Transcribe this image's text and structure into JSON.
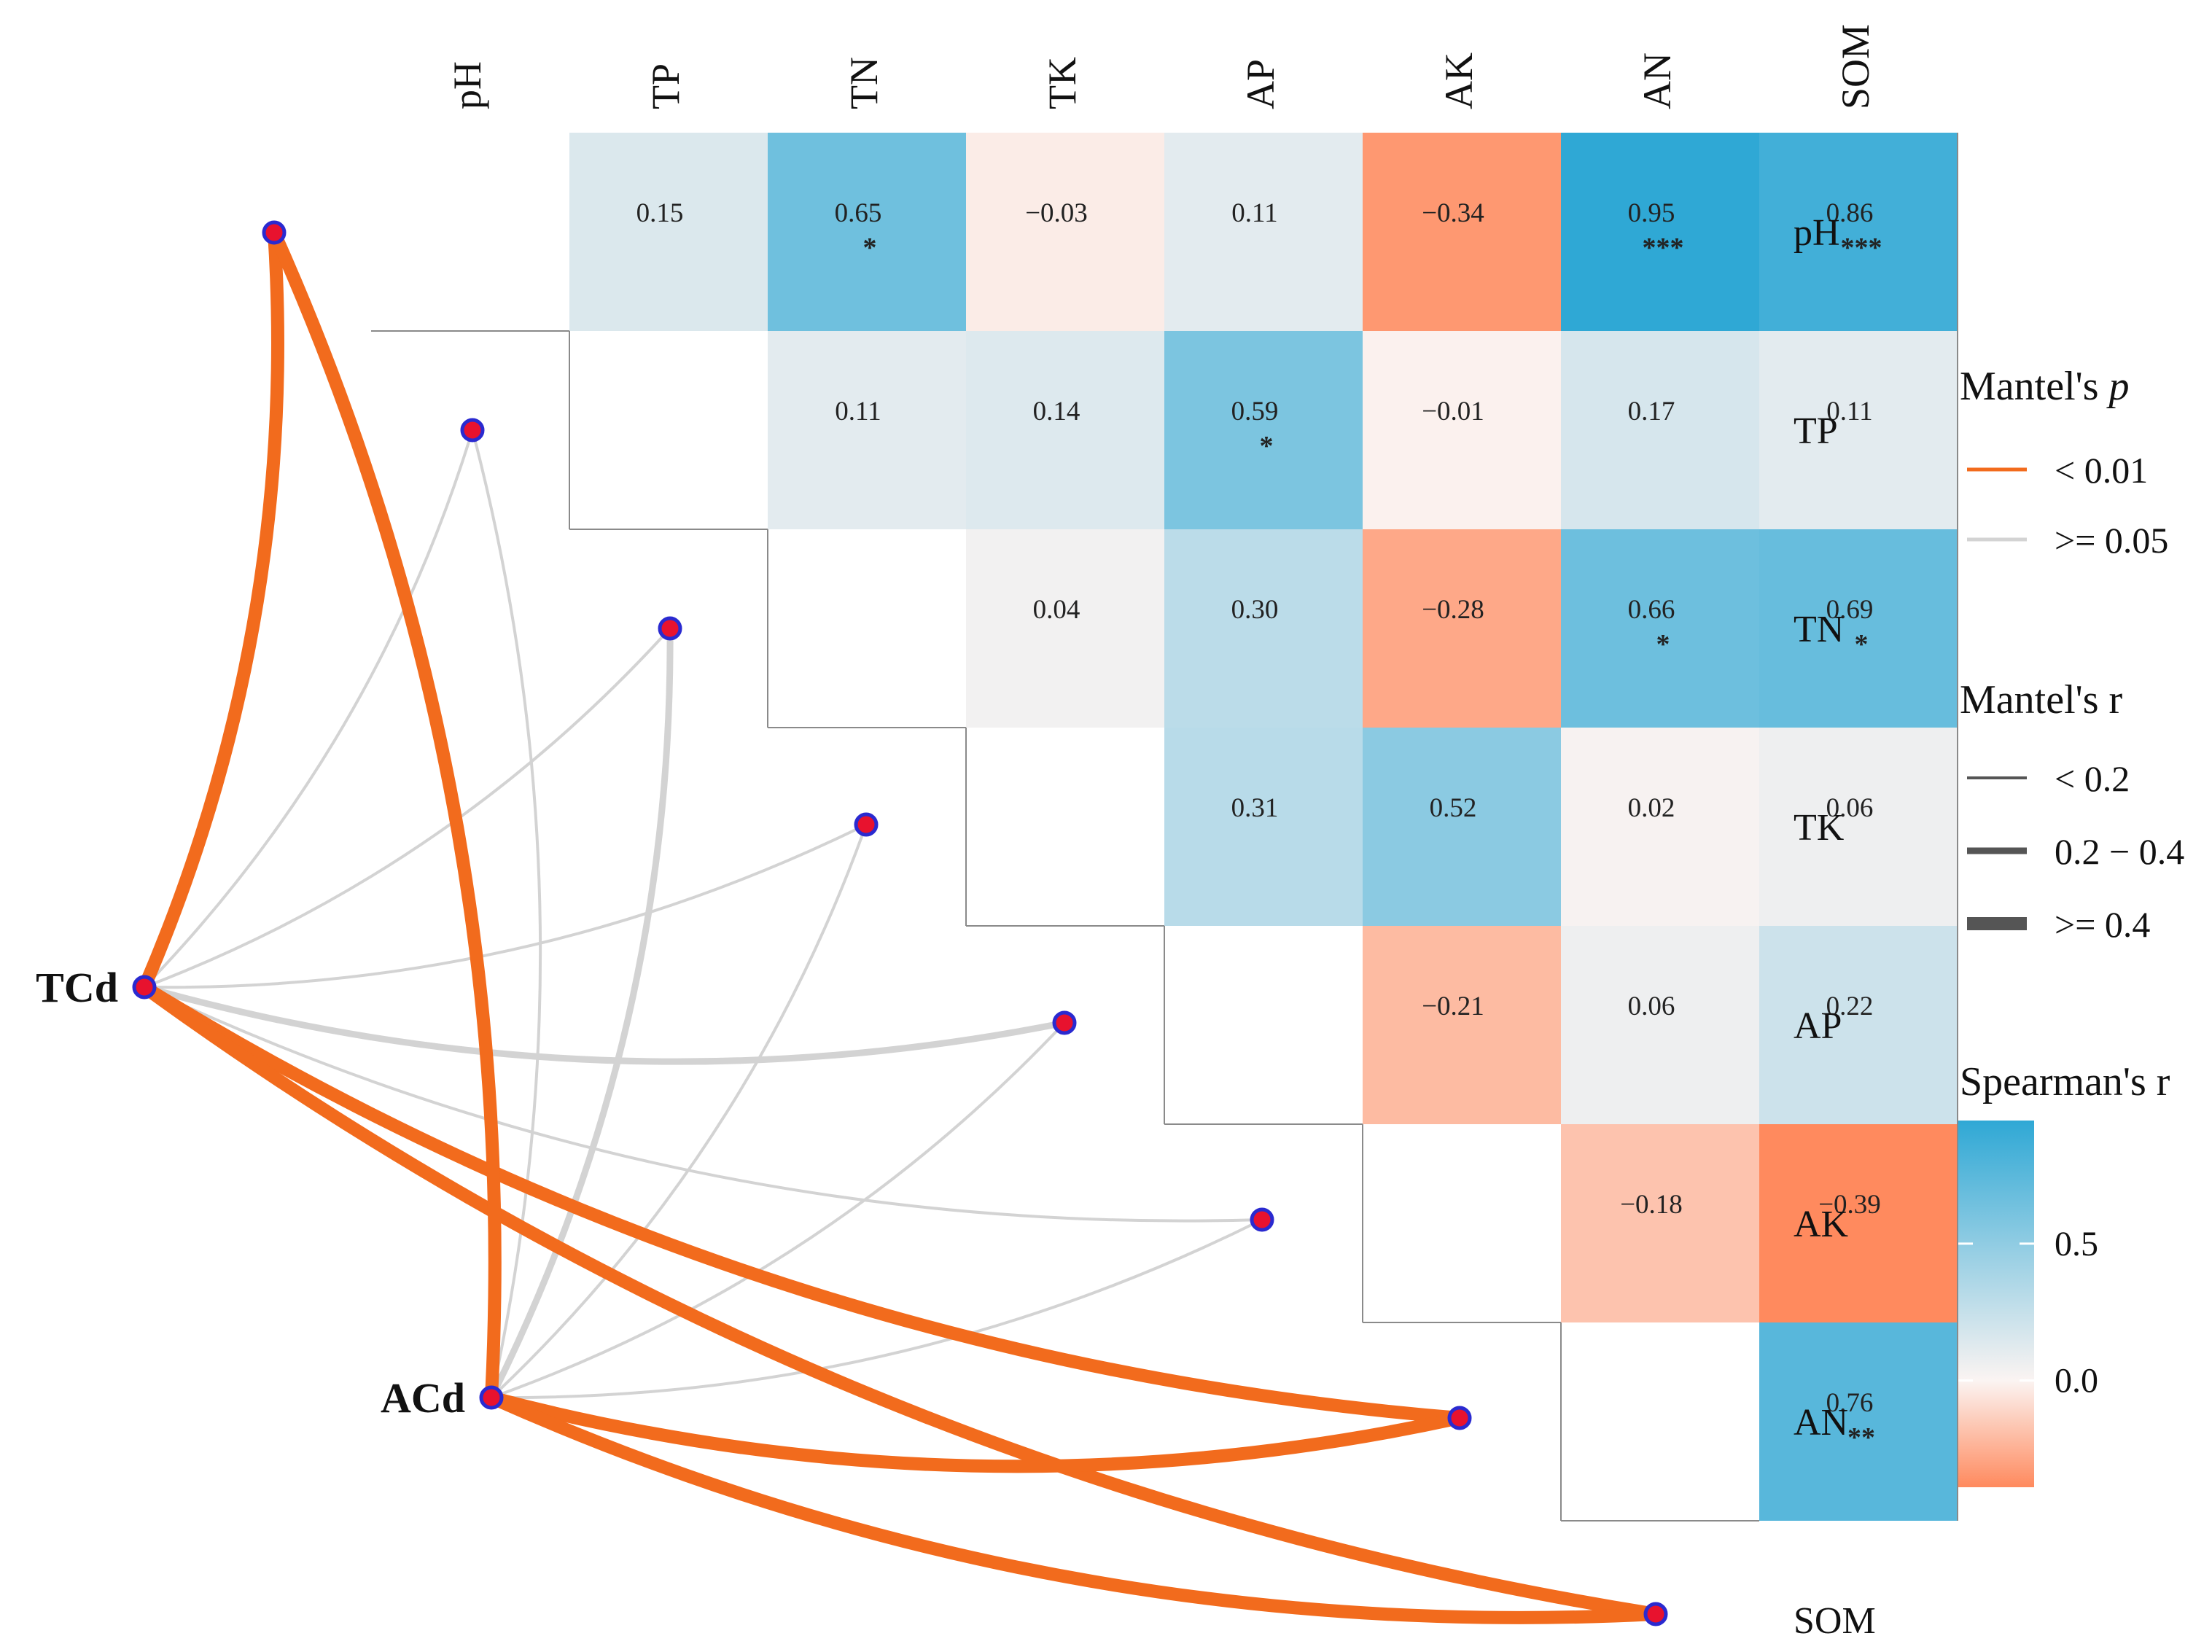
{
  "chart_data": {
    "type": "heatmap",
    "variables": [
      "pH",
      "TP",
      "TN",
      "TK",
      "AP",
      "AK",
      "AN",
      "SOM"
    ],
    "cells": [
      {
        "row": "pH",
        "col": "TP",
        "value": 0.15,
        "sig": ""
      },
      {
        "row": "pH",
        "col": "TN",
        "value": 0.65,
        "sig": "*"
      },
      {
        "row": "pH",
        "col": "TK",
        "value": -0.03,
        "sig": ""
      },
      {
        "row": "pH",
        "col": "AP",
        "value": 0.11,
        "sig": ""
      },
      {
        "row": "pH",
        "col": "AK",
        "value": -0.34,
        "sig": ""
      },
      {
        "row": "pH",
        "col": "AN",
        "value": 0.95,
        "sig": "***"
      },
      {
        "row": "pH",
        "col": "SOM",
        "value": 0.86,
        "sig": "***"
      },
      {
        "row": "TP",
        "col": "TN",
        "value": 0.11,
        "sig": ""
      },
      {
        "row": "TP",
        "col": "TK",
        "value": 0.14,
        "sig": ""
      },
      {
        "row": "TP",
        "col": "AP",
        "value": 0.59,
        "sig": "*"
      },
      {
        "row": "TP",
        "col": "AK",
        "value": -0.01,
        "sig": ""
      },
      {
        "row": "TP",
        "col": "AN",
        "value": 0.17,
        "sig": ""
      },
      {
        "row": "TP",
        "col": "SOM",
        "value": 0.11,
        "sig": ""
      },
      {
        "row": "TN",
        "col": "TK",
        "value": 0.04,
        "sig": ""
      },
      {
        "row": "TN",
        "col": "AP",
        "value": 0.3,
        "sig": ""
      },
      {
        "row": "TN",
        "col": "AK",
        "value": -0.28,
        "sig": ""
      },
      {
        "row": "TN",
        "col": "AN",
        "value": 0.66,
        "sig": "*"
      },
      {
        "row": "TN",
        "col": "SOM",
        "value": 0.69,
        "sig": "*"
      },
      {
        "row": "TK",
        "col": "AP",
        "value": 0.31,
        "sig": ""
      },
      {
        "row": "TK",
        "col": "AK",
        "value": 0.52,
        "sig": ""
      },
      {
        "row": "TK",
        "col": "AN",
        "value": 0.02,
        "sig": ""
      },
      {
        "row": "TK",
        "col": "SOM",
        "value": 0.06,
        "sig": ""
      },
      {
        "row": "AP",
        "col": "AK",
        "value": -0.21,
        "sig": ""
      },
      {
        "row": "AP",
        "col": "AN",
        "value": 0.06,
        "sig": ""
      },
      {
        "row": "AP",
        "col": "SOM",
        "value": 0.22,
        "sig": ""
      },
      {
        "row": "AK",
        "col": "AN",
        "value": -0.18,
        "sig": ""
      },
      {
        "row": "AK",
        "col": "SOM",
        "value": -0.39,
        "sig": ""
      },
      {
        "row": "AN",
        "col": "SOM",
        "value": 0.76,
        "sig": "**"
      }
    ],
    "mantel_sources": [
      "TCd",
      "ACd"
    ],
    "mantel_links": [
      {
        "from": "TCd",
        "to": "pH",
        "p_class": "< 0.01",
        "r_class": ">= 0.4"
      },
      {
        "from": "TCd",
        "to": "TP",
        "p_class": ">= 0.05",
        "r_class": "< 0.2"
      },
      {
        "from": "TCd",
        "to": "TN",
        "p_class": ">= 0.05",
        "r_class": "< 0.2"
      },
      {
        "from": "TCd",
        "to": "TK",
        "p_class": ">= 0.05",
        "r_class": "< 0.2"
      },
      {
        "from": "TCd",
        "to": "AP",
        "p_class": ">= 0.05",
        "r_class": "0.2 - 0.4"
      },
      {
        "from": "TCd",
        "to": "AK",
        "p_class": ">= 0.05",
        "r_class": "< 0.2"
      },
      {
        "from": "TCd",
        "to": "AN",
        "p_class": "< 0.01",
        "r_class": ">= 0.4"
      },
      {
        "from": "TCd",
        "to": "SOM",
        "p_class": "< 0.01",
        "r_class": ">= 0.4"
      },
      {
        "from": "ACd",
        "to": "pH",
        "p_class": "< 0.01",
        "r_class": ">= 0.4"
      },
      {
        "from": "ACd",
        "to": "TP",
        "p_class": ">= 0.05",
        "r_class": "< 0.2"
      },
      {
        "from": "ACd",
        "to": "TN",
        "p_class": ">= 0.05",
        "r_class": "0.2 - 0.4"
      },
      {
        "from": "ACd",
        "to": "TK",
        "p_class": ">= 0.05",
        "r_class": "< 0.2"
      },
      {
        "from": "ACd",
        "to": "AP",
        "p_class": ">= 0.05",
        "r_class": "< 0.2"
      },
      {
        "from": "ACd",
        "to": "AK",
        "p_class": ">= 0.05",
        "r_class": "< 0.2"
      },
      {
        "from": "ACd",
        "to": "AN",
        "p_class": "< 0.01",
        "r_class": ">= 0.4"
      },
      {
        "from": "ACd",
        "to": "SOM",
        "p_class": "< 0.01",
        "r_class": ">= 0.4"
      }
    ],
    "legend": {
      "mantel_p_title_prefix": "Mantel's ",
      "mantel_p_title_italic": "p",
      "mantel_p_items": [
        {
          "label": "< 0.01",
          "color": "#f26b1d"
        },
        {
          "label": ">= 0.05",
          "color": "#d3d3d3"
        }
      ],
      "mantel_r_title": "Mantel's r",
      "mantel_r_items": [
        {
          "label": "< 0.2",
          "width_class": "thin"
        },
        {
          "label": "0.2 − 0.4",
          "width_class": "medium"
        },
        {
          "label": ">= 0.4",
          "width_class": "thick"
        }
      ],
      "spearman_title": "Spearman's r",
      "spearman_ticks": [
        {
          "value": 0.5,
          "label": "0.5"
        },
        {
          "value": 0.0,
          "label": "0.0"
        }
      ],
      "spearman_range": [
        -0.39,
        0.95
      ]
    },
    "colors": {
      "negative": "#ff8a5e",
      "zero": "#fbf4f2",
      "positive": "#2fa8d5",
      "node_fill": "#e8122e",
      "node_stroke": "#2a2ad0"
    }
  }
}
